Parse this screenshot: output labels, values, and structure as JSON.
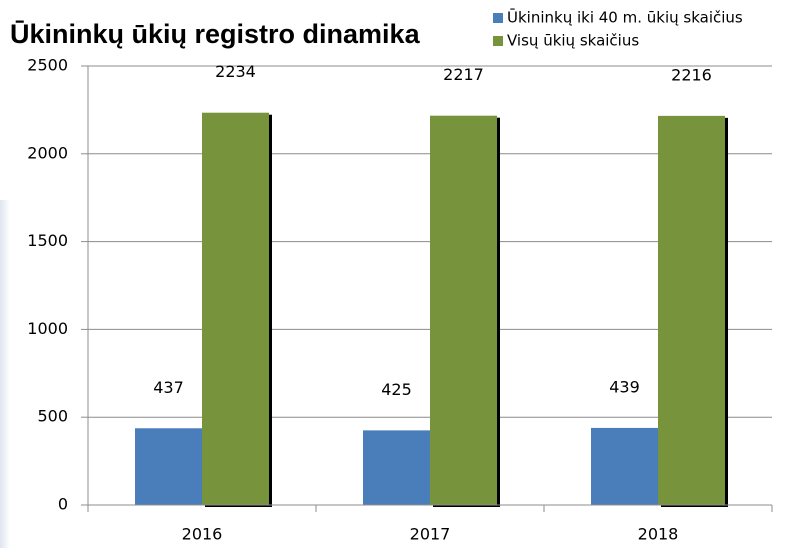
{
  "chart_data": {
    "type": "bar",
    "title": "Ūkininkų ūkių registro dinamika",
    "categories": [
      "2016",
      "2017",
      "2018"
    ],
    "series": [
      {
        "name": "Ūkininkų iki 40 m. ūkių skaičius",
        "color": "#4a7ebb",
        "values": [
          437,
          425,
          439
        ]
      },
      {
        "name": "Visų ūkių skaičius",
        "color": "#77933c",
        "values": [
          2234,
          2217,
          2216
        ]
      }
    ],
    "ylim": [
      0,
      2500
    ],
    "yticks": [
      0,
      500,
      1000,
      1500,
      2000,
      2500
    ],
    "grid": true,
    "legend": "top-right"
  }
}
